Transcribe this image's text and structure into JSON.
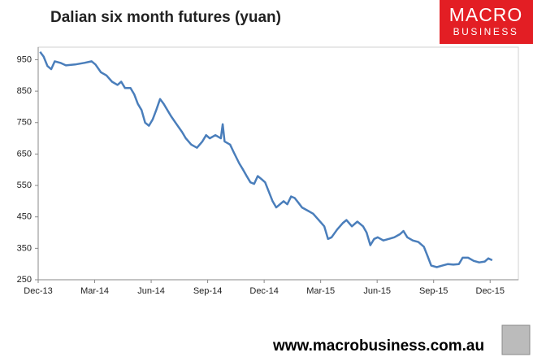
{
  "chart_data": {
    "type": "line",
    "title": "Dalian six month futures (yuan)",
    "logo": {
      "line1": "MACRO",
      "line2": "BUSINESS"
    },
    "footer": "www.macrobusiness.com.au",
    "color": "#4a7ebb",
    "x": [
      0.1,
      0.29,
      0.49,
      0.69,
      0.88,
      1.18,
      1.47,
      1.96,
      2.45,
      2.84,
      3.04,
      3.33,
      3.63,
      3.92,
      4.21,
      4.41,
      4.61,
      4.9,
      5.1,
      5.29,
      5.49,
      5.68,
      5.88,
      6.08,
      6.27,
      6.47,
      6.66,
      6.86,
      7.06,
      7.35,
      7.64,
      7.84,
      8.13,
      8.43,
      8.72,
      8.92,
      9.11,
      9.41,
      9.7,
      9.8,
      9.9,
      10.19,
      10.39,
      10.68,
      10.88,
      11.07,
      11.27,
      11.47,
      11.66,
      11.86,
      12.05,
      12.25,
      12.45,
      12.64,
      12.84,
      13.03,
      13.23,
      13.43,
      13.62,
      13.82,
      14.01,
      14.31,
      14.6,
      14.9,
      15.19,
      15.39,
      15.58,
      15.88,
      16.17,
      16.37,
      16.66,
      16.95,
      17.25,
      17.44,
      17.64,
      17.84,
      18.03,
      18.33,
      18.62,
      18.91,
      19.21,
      19.4,
      19.6,
      19.89,
      20.19,
      20.48,
      20.68,
      20.87,
      21.17,
      21.46,
      21.76,
      22.05,
      22.34,
      22.54,
      22.83,
      23.13,
      23.42,
      23.72,
      23.91,
      24.11
    ],
    "values": [
      975,
      960,
      930,
      920,
      945,
      940,
      932,
      935,
      940,
      945,
      935,
      910,
      900,
      880,
      870,
      880,
      860,
      860,
      840,
      810,
      790,
      750,
      740,
      760,
      790,
      825,
      810,
      790,
      770,
      745,
      720,
      700,
      680,
      670,
      690,
      710,
      700,
      710,
      700,
      745,
      690,
      680,
      655,
      620,
      600,
      580,
      560,
      555,
      580,
      570,
      560,
      530,
      500,
      480,
      490,
      500,
      490,
      515,
      510,
      495,
      480,
      470,
      460,
      440,
      420,
      380,
      385,
      410,
      430,
      440,
      420,
      435,
      420,
      400,
      360,
      380,
      385,
      375,
      380,
      385,
      395,
      405,
      385,
      375,
      370,
      355,
      325,
      295,
      290,
      295,
      300,
      298,
      300,
      320,
      320,
      310,
      305,
      308,
      318,
      312
    ],
    "xlim": [
      0,
      25.5
    ],
    "xticks": [
      {
        "value": 0,
        "label": "Dec-13"
      },
      {
        "value": 3,
        "label": "Mar-14"
      },
      {
        "value": 6,
        "label": "Jun-14"
      },
      {
        "value": 9,
        "label": "Sep-14"
      },
      {
        "value": 12,
        "label": "Dec-14"
      },
      {
        "value": 15,
        "label": "Mar-15"
      },
      {
        "value": 18,
        "label": "Jun-15"
      },
      {
        "value": 21,
        "label": "Sep-15"
      },
      {
        "value": 24,
        "label": "Dec-15"
      }
    ],
    "ylim": [
      250,
      990
    ],
    "yticks": [
      250,
      350,
      450,
      550,
      650,
      750,
      850,
      950
    ]
  }
}
